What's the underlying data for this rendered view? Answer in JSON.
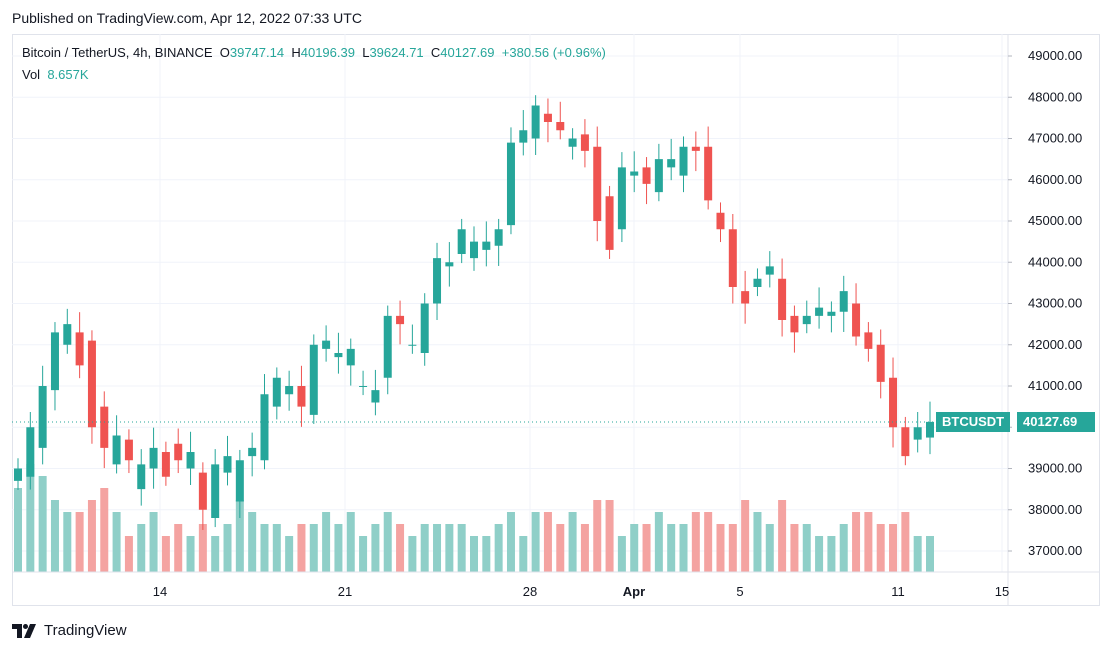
{
  "published": "Published on TradingView.com, Apr 12, 2022 07:33 UTC",
  "legend": {
    "symbol": "Bitcoin / TetherUS, 4h, BINANCE",
    "open_label": "O",
    "open": "39747.14",
    "high_label": "H",
    "high": "40196.39",
    "low_label": "L",
    "low": "39624.71",
    "close_label": "C",
    "close": "40127.69",
    "change": "+380.56 (+0.96%)",
    "vol_label": "Vol",
    "vol": "8.657K"
  },
  "price_tag": {
    "symbol": "BTCUSDT",
    "price": "40127.69"
  },
  "footer": {
    "brand": "TradingView",
    "icon": "tradingview-logo-icon"
  },
  "colors": {
    "up": "#26a69a",
    "down": "#ef5350",
    "up_vol": "#8fcfc8",
    "down_vol": "#f4a3a1",
    "grid": "#f0f3fa"
  },
  "chart_data": {
    "type": "candlestick",
    "current_price": 40127.69,
    "ylim": [
      36500,
      49500
    ],
    "y_ticks": [
      "49000.00",
      "48000.00",
      "47000.00",
      "46000.00",
      "45000.00",
      "44000.00",
      "43000.00",
      "42000.00",
      "41000.00",
      "40000.00",
      "39000.00",
      "38000.00",
      "37000.00"
    ],
    "x_ticks": [
      "14",
      "21",
      "28",
      "Apr",
      "5",
      "11",
      "15"
    ],
    "close_path": [
      [
        39000,
        38700
      ],
      [
        40000,
        38800
      ],
      [
        41000,
        39500
      ],
      [
        42300,
        40900
      ],
      [
        42500,
        42000
      ],
      [
        41500,
        42300
      ],
      [
        40000,
        42100
      ],
      [
        39500,
        40500
      ],
      [
        39800,
        39100
      ],
      [
        39200,
        39700
      ],
      [
        39100,
        38500
      ],
      [
        39500,
        39000
      ],
      [
        38800,
        39400
      ],
      [
        39200,
        39600
      ],
      [
        39400,
        39000
      ],
      [
        38000,
        38900
      ],
      [
        39100,
        37800
      ],
      [
        39300,
        38900
      ],
      [
        39200,
        38200
      ],
      [
        39500,
        39300
      ],
      [
        40800,
        39200
      ],
      [
        41200,
        40500
      ],
      [
        41000,
        40800
      ],
      [
        40500,
        41000
      ],
      [
        42000,
        40300
      ],
      [
        42100,
        41900
      ],
      [
        41800,
        41700
      ],
      [
        41900,
        41500
      ],
      [
        41000,
        41000
      ],
      [
        40900,
        40600
      ],
      [
        42700,
        41200
      ],
      [
        42500,
        42700
      ],
      [
        42000,
        42000
      ],
      [
        43000,
        41800
      ],
      [
        44100,
        43000
      ],
      [
        44000,
        43900
      ],
      [
        44800,
        44200
      ],
      [
        44500,
        44100
      ],
      [
        44500,
        44300
      ],
      [
        44800,
        44400
      ],
      [
        46900,
        44900
      ],
      [
        47200,
        46900
      ],
      [
        47800,
        47000
      ],
      [
        47400,
        47600
      ],
      [
        47200,
        47400
      ],
      [
        47000,
        46800
      ],
      [
        46700,
        47100
      ],
      [
        45000,
        46800
      ],
      [
        44300,
        45600
      ],
      [
        46300,
        44800
      ],
      [
        46200,
        46100
      ],
      [
        45900,
        46300
      ],
      [
        46500,
        45700
      ],
      [
        46500,
        46300
      ],
      [
        46800,
        46100
      ],
      [
        46700,
        46800
      ],
      [
        45500,
        46800
      ],
      [
        44800,
        45200
      ],
      [
        43400,
        44800
      ],
      [
        43000,
        43300
      ],
      [
        43600,
        43400
      ],
      [
        43900,
        43700
      ],
      [
        42600,
        43600
      ],
      [
        42300,
        42700
      ],
      [
        42700,
        42500
      ],
      [
        42900,
        42700
      ],
      [
        42800,
        42700
      ],
      [
        43300,
        42800
      ],
      [
        42200,
        43000
      ],
      [
        41900,
        42300
      ],
      [
        41100,
        42000
      ],
      [
        40000,
        41200
      ],
      [
        39300,
        40000
      ],
      [
        40000,
        39700
      ],
      [
        40130,
        39750
      ]
    ],
    "volume_scale": [
      0,
      10
    ],
    "volumes": [
      7,
      9,
      8,
      6,
      5,
      5,
      6,
      7,
      5,
      3,
      4,
      5,
      3,
      4,
      3,
      4,
      3,
      4,
      6,
      5,
      4,
      4,
      3,
      4,
      4,
      5,
      4,
      5,
      3,
      4,
      5,
      4,
      3,
      4,
      4,
      4,
      4,
      3,
      3,
      4,
      5,
      3,
      5,
      5,
      4,
      5,
      4,
      6,
      6,
      3,
      4,
      4,
      5,
      4,
      4,
      5,
      5,
      4,
      4,
      6,
      5,
      4,
      6,
      4,
      4,
      3,
      3,
      4,
      5,
      5,
      4,
      4,
      5,
      3,
      3
    ]
  }
}
